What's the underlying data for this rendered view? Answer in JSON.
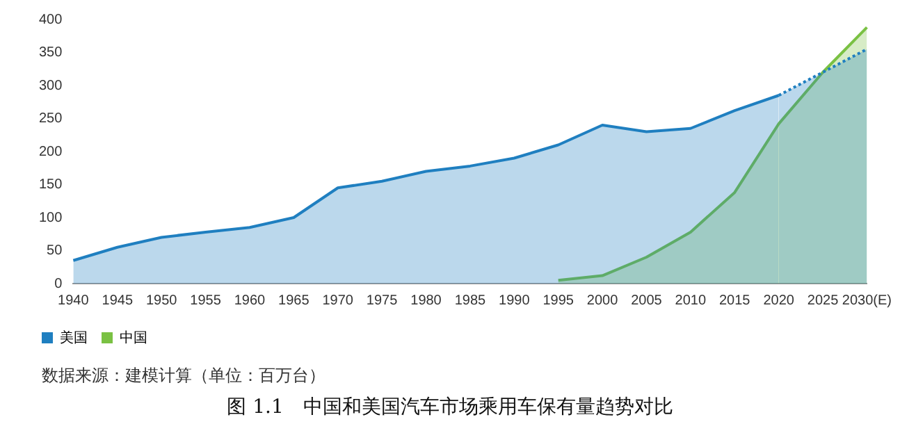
{
  "chart_data": {
    "type": "area",
    "title": "图 1.1　中国和美国汽车市场乘用车保有量趋势对比",
    "annotations": [
      "数据来源：建模计算（单位：百万台）"
    ],
    "categories": [
      "1940",
      "1945",
      "1950",
      "1955",
      "1960",
      "1965",
      "1970",
      "1975",
      "1980",
      "1985",
      "1990",
      "1995",
      "2000",
      "2005",
      "2010",
      "2015",
      "2020",
      "2025",
      "2030(E)"
    ],
    "series": [
      {
        "name": "美国",
        "color": "#1f7fc0",
        "values": [
          35,
          55,
          70,
          78,
          85,
          100,
          145,
          155,
          170,
          178,
          190,
          210,
          240,
          230,
          235,
          262,
          285,
          null,
          null
        ]
      },
      {
        "color": "#1f7fc0",
        "line_style": "dotted",
        "values": [
          null,
          null,
          null,
          null,
          null,
          null,
          null,
          null,
          null,
          null,
          null,
          null,
          null,
          null,
          null,
          null,
          285,
          320,
          355
        ]
      },
      {
        "name": "中国",
        "color": "#7ac143",
        "values": [
          null,
          null,
          null,
          null,
          null,
          null,
          null,
          null,
          null,
          null,
          null,
          5,
          12,
          40,
          78,
          138,
          242,
          320,
          388
        ]
      }
    ],
    "ylim": [
      0,
      400
    ],
    "yticks": [
      0,
      50,
      100,
      150,
      200,
      250,
      300,
      350,
      400
    ],
    "grid": false,
    "legend": "bottom left",
    "marker": "none",
    "line_style": "solid"
  }
}
